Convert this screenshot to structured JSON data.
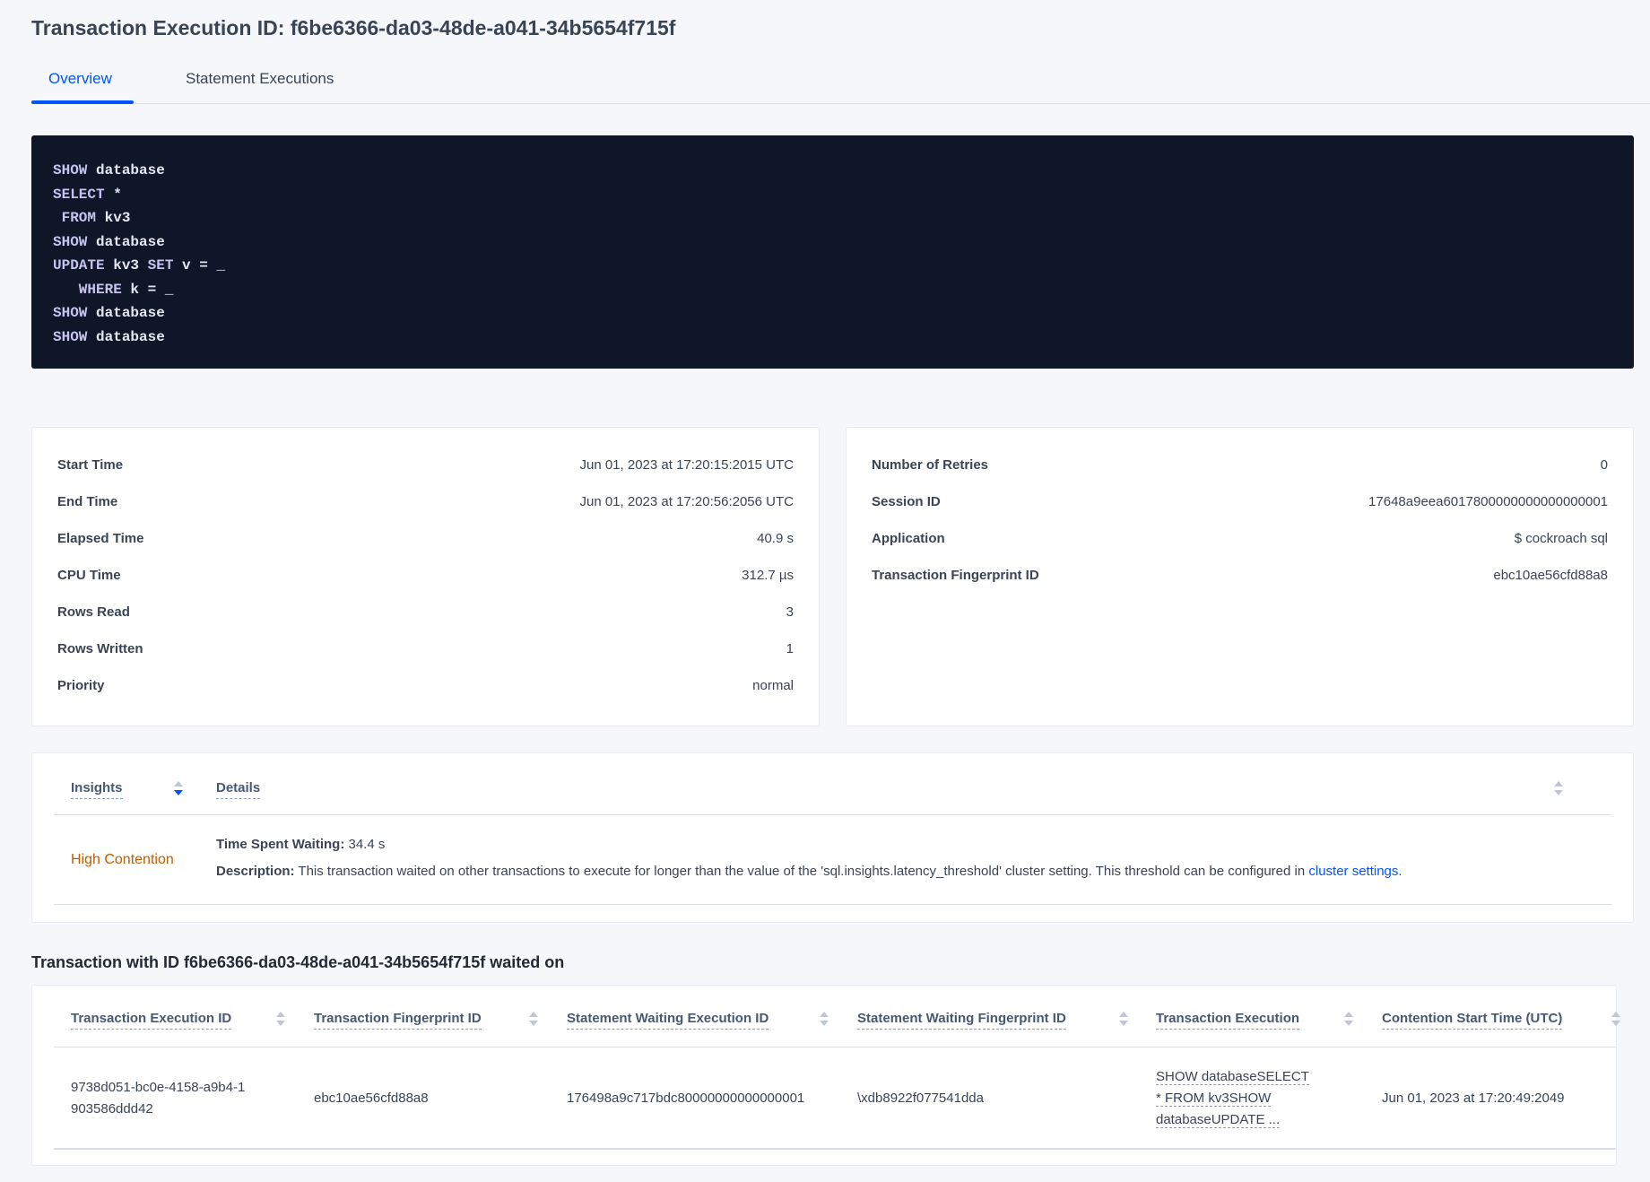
{
  "title": "Transaction Execution ID: f6be6366-da03-48de-a041-34b5654f715f",
  "tabs": [
    {
      "label": "Overview",
      "active": true
    },
    {
      "label": "Statement Executions",
      "active": false
    }
  ],
  "sql_lines": [
    [
      {
        "t": "SHOW",
        "kw": true
      },
      {
        "t": " database"
      }
    ],
    [
      {
        "t": "SELECT",
        "kw": true
      },
      {
        "t": " *"
      }
    ],
    [
      {
        "t": " FROM",
        "kw": true
      },
      {
        "t": " kv3"
      }
    ],
    [
      {
        "t": "SHOW",
        "kw": true
      },
      {
        "t": " database"
      }
    ],
    [
      {
        "t": "UPDATE",
        "kw": true
      },
      {
        "t": " kv3 "
      },
      {
        "t": "SET",
        "kw": true
      },
      {
        "t": " v = _"
      }
    ],
    [
      {
        "t": "   WHERE",
        "kw": true
      },
      {
        "t": " k = _"
      }
    ],
    [
      {
        "t": "SHOW",
        "kw": true
      },
      {
        "t": " database"
      }
    ],
    [
      {
        "t": "SHOW",
        "kw": true
      },
      {
        "t": " database"
      }
    ]
  ],
  "summary_left": [
    {
      "label": "Start Time",
      "value": "Jun 01, 2023 at 17:20:15:2015 UTC"
    },
    {
      "label": "End Time",
      "value": "Jun 01, 2023 at 17:20:56:2056 UTC"
    },
    {
      "label": "Elapsed Time",
      "value": "40.9 s"
    },
    {
      "label": "CPU Time",
      "value": "312.7 µs"
    },
    {
      "label": "Rows Read",
      "value": "3"
    },
    {
      "label": "Rows Written",
      "value": "1"
    },
    {
      "label": "Priority",
      "value": "normal"
    }
  ],
  "summary_right": [
    {
      "label": "Number of Retries",
      "value": "0"
    },
    {
      "label": "Session ID",
      "value": "17648a9eea6017800000000000000001"
    },
    {
      "label": "Application",
      "value": "$ cockroach sql"
    },
    {
      "label": "Transaction Fingerprint ID",
      "value": "ebc10ae56cfd88a8",
      "link": true
    }
  ],
  "insights": {
    "col_insights": "Insights",
    "col_details": "Details",
    "type": "High Contention",
    "type_color": "#c25d00",
    "time_label": "Time Spent Waiting:",
    "time_value": " 34.4 s",
    "desc_label": "Description:",
    "desc_text": " This transaction waited on other transactions to execute for longer than the value of the 'sql.insights.latency_threshold' cluster setting. This threshold can be configured in ",
    "desc_link": "cluster settings",
    "desc_end": "."
  },
  "waited_heading": "Transaction with ID f6be6366-da03-48de-a041-34b5654f715f waited on",
  "waited_table": {
    "columns": [
      "Transaction Execution ID",
      "Transaction Fingerprint ID",
      "Statement Waiting Execution ID",
      "Statement Waiting Fingerprint ID",
      "Transaction Execution",
      "Contention Start Time (UTC)"
    ],
    "rows": [
      [
        "9738d051-bc0e-4158-a9b4-1903586ddd42",
        "ebc10ae56cfd88a8",
        "176498a9c717bdc80000000000000001",
        "\\xdb8922f077541dda",
        "SHOW databaseSELECT * FROM kv3SHOW databaseUPDATE ...",
        "Jun 01, 2023 at 17:20:49:2049"
      ]
    ]
  },
  "colors": {
    "accent": "#0055ff",
    "code_bg": "#0e1628",
    "page_bg": "#f5f7fa"
  }
}
